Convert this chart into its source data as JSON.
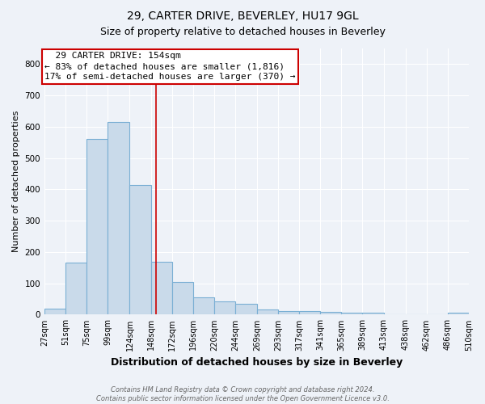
{
  "title": "29, CARTER DRIVE, BEVERLEY, HU17 9GL",
  "subtitle": "Size of property relative to detached houses in Beverley",
  "xlabel": "Distribution of detached houses by size in Beverley",
  "ylabel": "Number of detached properties",
  "footnote": "Contains HM Land Registry data © Crown copyright and database right 2024.\nContains public sector information licensed under the Open Government Licence v3.0.",
  "bin_edges": [
    27,
    51,
    75,
    99,
    124,
    148,
    172,
    196,
    220,
    244,
    269,
    293,
    317,
    341,
    365,
    389,
    413,
    438,
    462,
    486,
    510
  ],
  "bar_heights": [
    20,
    165,
    560,
    615,
    415,
    170,
    105,
    55,
    43,
    35,
    16,
    11,
    11,
    8,
    5,
    5,
    0,
    0,
    0,
    7
  ],
  "bar_color": "#c9daea",
  "bar_edgecolor": "#7aafd4",
  "vline_x": 154,
  "vline_color": "#cc0000",
  "annotation_text": "  29 CARTER DRIVE: 154sqm\n← 83% of detached houses are smaller (1,816)\n17% of semi-detached houses are larger (370) →",
  "annotation_box_color": "#ffffff",
  "annotation_box_edgecolor": "#cc0000",
  "ylim": [
    0,
    850
  ],
  "yticks": [
    0,
    100,
    200,
    300,
    400,
    500,
    600,
    700,
    800
  ],
  "tick_labels": [
    "27sqm",
    "51sqm",
    "75sqm",
    "99sqm",
    "124sqm",
    "148sqm",
    "172sqm",
    "196sqm",
    "220sqm",
    "244sqm",
    "269sqm",
    "293sqm",
    "317sqm",
    "341sqm",
    "365sqm",
    "389sqm",
    "413sqm",
    "438sqm",
    "462sqm",
    "486sqm",
    "510sqm"
  ],
  "background_color": "#eef2f8",
  "grid_color": "#ffffff",
  "title_fontsize": 10,
  "subtitle_fontsize": 9,
  "ylabel_fontsize": 8,
  "xlabel_fontsize": 9,
  "tick_fontsize": 7,
  "annot_fontsize": 8
}
